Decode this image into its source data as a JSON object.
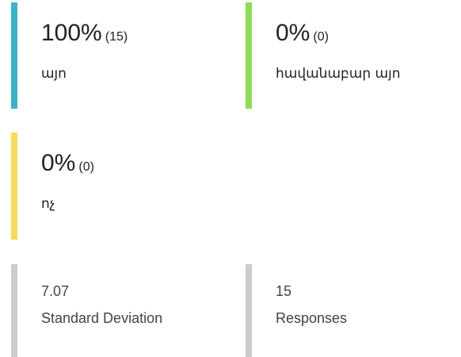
{
  "options": [
    {
      "percent": "100%",
      "count": "(15)",
      "label": "այո"
    },
    {
      "percent": "0%",
      "count": "(0)",
      "label": "հավանաբար այո"
    },
    {
      "percent": "0%",
      "count": "(0)",
      "label": "ոչ"
    }
  ],
  "stats": [
    {
      "value": "7.07",
      "label": "Standard Deviation"
    },
    {
      "value": "15",
      "label": "Responses"
    }
  ]
}
